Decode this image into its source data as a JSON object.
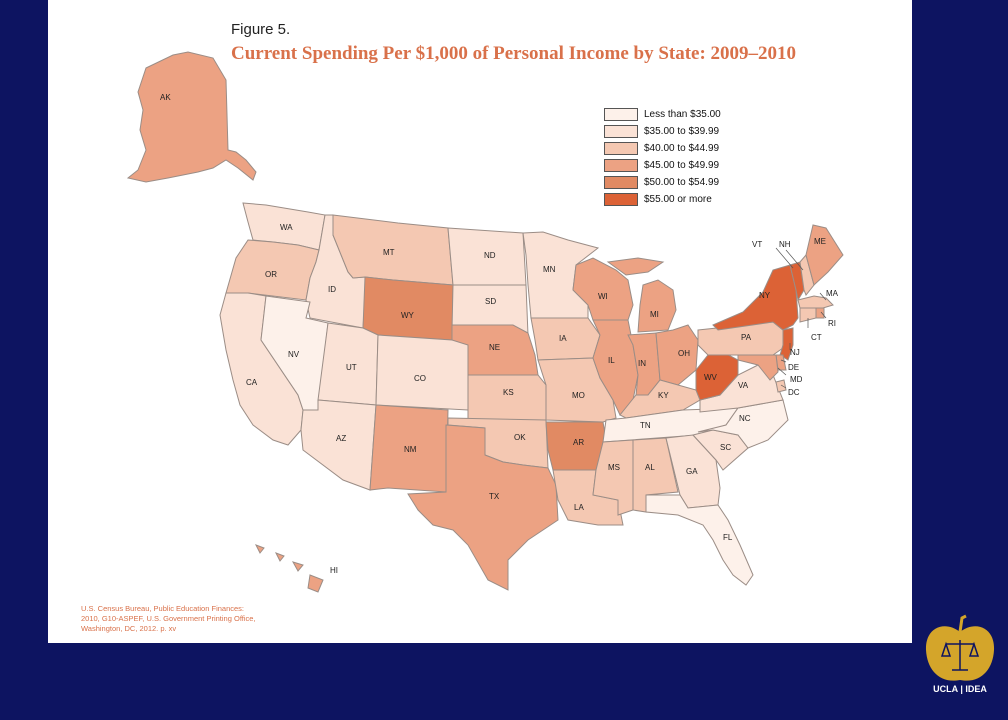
{
  "figure": {
    "label": "Figure 5.",
    "title": "Current Spending Per $1,000 of Personal Income by State: 2009–2010"
  },
  "legend": [
    {
      "label": "Less than $35.00",
      "color": "#fdf1ea"
    },
    {
      "label": "$35.00 to $39.99",
      "color": "#fae2d6"
    },
    {
      "label": "$40.00 to $44.99",
      "color": "#f4c8b2"
    },
    {
      "label": "$45.00 to $49.99",
      "color": "#eca283"
    },
    {
      "label": "$50.00 to $54.99",
      "color": "#e18a63"
    },
    {
      "label": "$55.00 or more",
      "color": "#dc6236"
    }
  ],
  "states": {
    "AK": {
      "bin": 3
    },
    "WA": {
      "bin": 1
    },
    "OR": {
      "bin": 2
    },
    "CA": {
      "bin": 1
    },
    "ID": {
      "bin": 1
    },
    "NV": {
      "bin": 0
    },
    "MT": {
      "bin": 2
    },
    "WY": {
      "bin": 4
    },
    "UT": {
      "bin": 1
    },
    "CO": {
      "bin": 1
    },
    "AZ": {
      "bin": 1
    },
    "NM": {
      "bin": 3
    },
    "ND": {
      "bin": 1
    },
    "SD": {
      "bin": 1
    },
    "NE": {
      "bin": 3
    },
    "KS": {
      "bin": 2
    },
    "OK": {
      "bin": 2
    },
    "TX": {
      "bin": 3
    },
    "MN": {
      "bin": 1
    },
    "IA": {
      "bin": 2
    },
    "MO": {
      "bin": 2
    },
    "AR": {
      "bin": 4
    },
    "LA": {
      "bin": 2
    },
    "WI": {
      "bin": 3
    },
    "IL": {
      "bin": 3
    },
    "MI": {
      "bin": 3
    },
    "IN": {
      "bin": 3
    },
    "OH": {
      "bin": 3
    },
    "KY": {
      "bin": 2
    },
    "TN": {
      "bin": 0
    },
    "MS": {
      "bin": 2
    },
    "AL": {
      "bin": 2
    },
    "GA": {
      "bin": 1
    },
    "FL": {
      "bin": 0
    },
    "SC": {
      "bin": 1
    },
    "NC": {
      "bin": 0
    },
    "VA": {
      "bin": 1
    },
    "WV": {
      "bin": 5
    },
    "PA": {
      "bin": 2
    },
    "NY": {
      "bin": 5
    },
    "VT": {
      "bin": 5
    },
    "NH": {
      "bin": 2
    },
    "ME": {
      "bin": 3
    },
    "MA": {
      "bin": 2
    },
    "RI": {
      "bin": 3
    },
    "CT": {
      "bin": 2
    },
    "NJ": {
      "bin": 5
    },
    "DE": {
      "bin": 3
    },
    "MD": {
      "bin": 3
    },
    "DC": {
      "bin": 2
    },
    "HI": {
      "bin": 3
    }
  },
  "labels": {
    "AK": "AK",
    "WA": "WA",
    "OR": "OR",
    "CA": "CA",
    "ID": "ID",
    "NV": "NV",
    "MT": "MT",
    "WY": "WY",
    "UT": "UT",
    "CO": "CO",
    "AZ": "AZ",
    "NM": "NM",
    "ND": "ND",
    "SD": "SD",
    "NE": "NE",
    "KS": "KS",
    "OK": "OK",
    "TX": "TX",
    "MN": "MN",
    "IA": "IA",
    "MO": "MO",
    "AR": "AR",
    "LA": "LA",
    "WI": "WI",
    "IL": "IL",
    "MI": "MI",
    "IN": "IN",
    "OH": "OH",
    "KY": "KY",
    "TN": "TN",
    "MS": "MS",
    "AL": "AL",
    "GA": "GA",
    "FL": "FL",
    "SC": "SC",
    "NC": "NC",
    "VA": "VA",
    "WV": "WV",
    "PA": "PA",
    "NY": "NY",
    "VT": "VT",
    "NH": "NH",
    "ME": "ME",
    "MA": "MA",
    "RI": "RI",
    "CT": "CT",
    "NJ": "NJ",
    "DE": "DE",
    "MD": "MD",
    "DC": "DC",
    "HI": "HI"
  },
  "source": {
    "line1": "U.S. Census Bureau, Public Education Finances:",
    "line2": "2010, G10-ASPEF, U.S. Government Printing Office,",
    "line3": "Washington, DC, 2012. p. xv"
  },
  "logo": {
    "text_left": "UCLA",
    "text_right": "IDEA",
    "color": "#d4a52a"
  }
}
